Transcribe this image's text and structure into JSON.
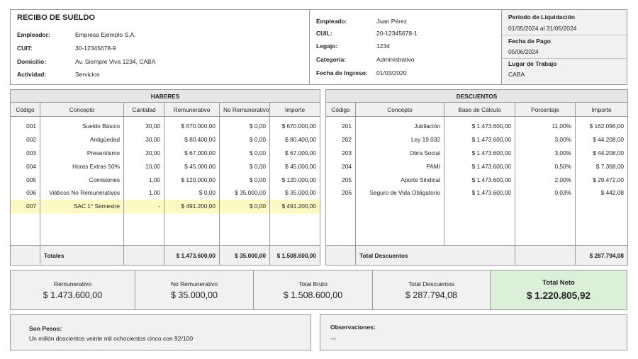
{
  "header": {
    "title": "RECIBO DE SUELDO",
    "employer_fields": [
      {
        "label": "Empleador:",
        "value": "Empresa Ejemplo S.A."
      },
      {
        "label": "CUIT:",
        "value": "30-12345678-9"
      },
      {
        "label": "Domicilio:",
        "value": "Av. Siempre Viva 1234, CABA"
      },
      {
        "label": "Actividad:",
        "value": "Servicios"
      }
    ],
    "employee_fields": [
      {
        "label": "Empleado:",
        "value": "Juan Pérez"
      },
      {
        "label": "CUIL:",
        "value": "20-12345678-1"
      },
      {
        "label": "Legajo:",
        "value": "1234"
      },
      {
        "label": "Categoría:",
        "value": "Administrativo"
      },
      {
        "label": "Fecha de Ingreso:",
        "value": "01/03/2020"
      }
    ],
    "period": {
      "periodo_label": "Período de Liquidación",
      "periodo_value": "01/05/2024 al 31/05/2024",
      "fecha_pago_label": "Fecha de Pago",
      "fecha_pago_value": "05/06/2024",
      "lugar_label": "Lugar de Trabajo",
      "lugar_value": "CABA"
    }
  },
  "haberes": {
    "section_title": "HABERES",
    "columns": [
      "Código",
      "Concepto",
      "Cantidad",
      "Remunerativo",
      "No Remunerativo",
      "Importe"
    ],
    "rows": [
      {
        "codigo": "001",
        "concepto": "Sueldo Básico",
        "cantidad": "30,00",
        "remunerativo": "$ 670.000,00",
        "no_remunerativo": "$ 0,00",
        "importe": "$ 670.000,00"
      },
      {
        "codigo": "002",
        "concepto": "Antigüedad",
        "cantidad": "30,00",
        "remunerativo": "$ 80.400,00",
        "no_remunerativo": "$ 0,00",
        "importe": "$ 80.400,00"
      },
      {
        "codigo": "003",
        "concepto": "Presentismo",
        "cantidad": "30,00",
        "remunerativo": "$ 67.000,00",
        "no_remunerativo": "$ 0,00",
        "importe": "$ 67.000,00"
      },
      {
        "codigo": "004",
        "concepto": "Horas Extras 50%",
        "cantidad": "10,00",
        "remunerativo": "$ 45.000,00",
        "no_remunerativo": "$ 0,00",
        "importe": "$ 45.000,00"
      },
      {
        "codigo": "005",
        "concepto": "Comisiones",
        "cantidad": "1,00",
        "remunerativo": "$ 120.000,00",
        "no_remunerativo": "$ 0,00",
        "importe": "$ 120.000,00"
      },
      {
        "codigo": "006",
        "concepto": "Viáticos No Remunerativos",
        "cantidad": "1,00",
        "remunerativo": "$ 0,00",
        "no_remunerativo": "$ 35.000,00",
        "importe": "$ 35.000,00"
      },
      {
        "codigo": "007",
        "concepto": "SAC 1° Semestre",
        "cantidad": "-",
        "remunerativo": "$ 491.200,00",
        "no_remunerativo": "$ 0,00",
        "importe": "$ 491.200,00",
        "highlight": true
      }
    ],
    "totals": {
      "label": "Totales",
      "remunerativo": "$ 1.473.600,00",
      "no_remunerativo": "$ 35.000,00",
      "importe": "$ 1.508.600,00"
    }
  },
  "descuentos": {
    "section_title": "DESCUENTOS",
    "columns": [
      "Código",
      "Concepto",
      "Base de Cálculo",
      "Porcentaje",
      "Importe"
    ],
    "rows": [
      {
        "codigo": "201",
        "concepto": "Jubilación",
        "base": "$ 1.473.600,00",
        "porcentaje": "11,00%",
        "importe": "$ 162.096,00"
      },
      {
        "codigo": "202",
        "concepto": "Ley 19.032",
        "base": "$ 1.473.600,00",
        "porcentaje": "3,00%",
        "importe": "$ 44.208,00"
      },
      {
        "codigo": "203",
        "concepto": "Obra Social",
        "base": "$ 1.473.600,00",
        "porcentaje": "3,00%",
        "importe": "$ 44.208,00"
      },
      {
        "codigo": "204",
        "concepto": "PAMI",
        "base": "$ 1.473.600,00",
        "porcentaje": "0,50%",
        "importe": "$ 7.368,00"
      },
      {
        "codigo": "205",
        "concepto": "Aporte Sindical",
        "base": "$ 1.473.600,00",
        "porcentaje": "2,00%",
        "importe": "$ 29.472,00"
      },
      {
        "codigo": "206",
        "concepto": "Seguro de Vida Obligatorio",
        "base": "$ 1.473.600,00",
        "porcentaje": "0,03%",
        "importe": "$ 442,08"
      }
    ],
    "totals": {
      "label": "Total Descuentos",
      "importe": "$ 287.794,08"
    }
  },
  "summary": [
    {
      "label": "Remunerativo",
      "value": "$ 1.473.600,00"
    },
    {
      "label": "No Remunerativo",
      "value": "$ 35.000,00"
    },
    {
      "label": "Total Bruto",
      "value": "$ 1.508.600,00"
    },
    {
      "label": "Total Descuentos",
      "value": "$ 287.794,08"
    },
    {
      "label": "Total Neto",
      "value": "$ 1.220.805,92"
    }
  ],
  "son_pesos": {
    "label": "Son Pesos:",
    "value": "Un millón doscientos veinte mil ochocientos cinco con 92/100"
  },
  "observaciones": {
    "label": "Observaciones:",
    "value": "---"
  },
  "colors": {
    "highlight": "#fdf8c4",
    "neto_bg": "#dcefd9",
    "header_bg": "#e6e6e6",
    "border": "#9a9a9a"
  }
}
